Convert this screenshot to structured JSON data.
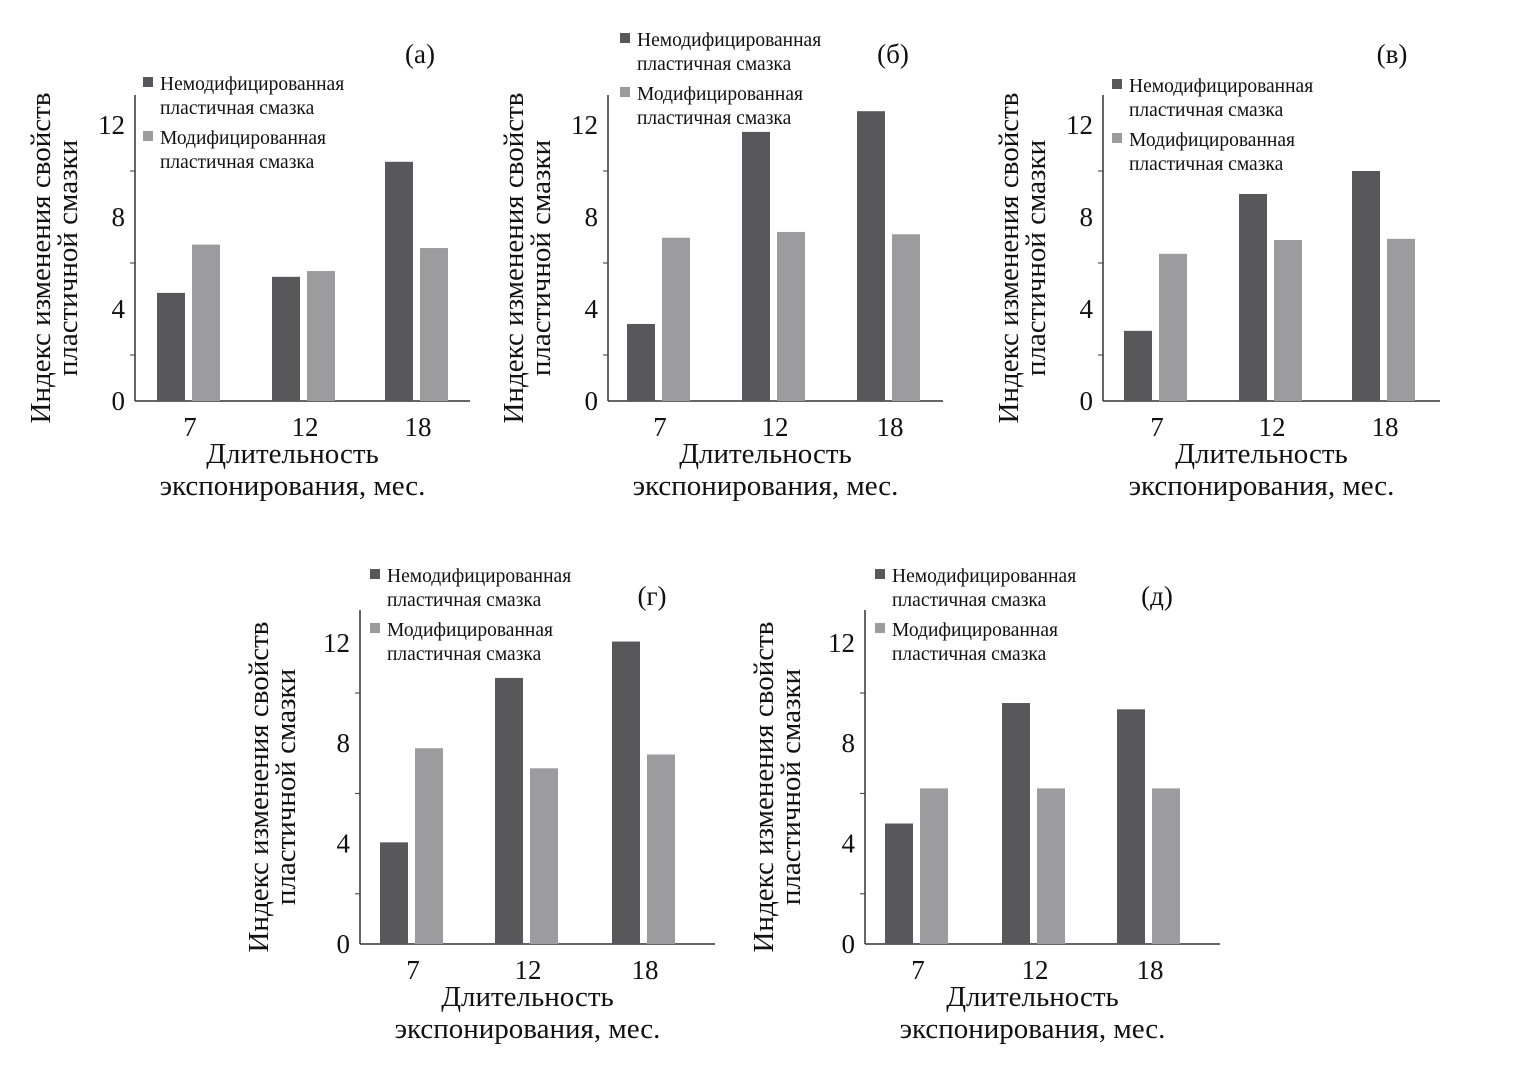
{
  "colors": {
    "unmodified": "#58585a",
    "modified": "#9c9c9e",
    "axis": "#333333"
  },
  "chart_data": [
    {
      "type": "bar",
      "panel": "(а)",
      "categories": [
        "7",
        "12",
        "18"
      ],
      "series": [
        {
          "name": "Немодифицированная пластичная смазка",
          "values": [
            4.7,
            5.4,
            10.4
          ]
        },
        {
          "name": "Модифицированная пластичная смазка",
          "values": [
            6.8,
            5.65,
            6.65
          ]
        }
      ],
      "ylabel": [
        "Индекс изменения свойств",
        "пластичной смазки"
      ],
      "xlabel": [
        "Длительность",
        "экспонирования, мес."
      ],
      "yticks": [
        "0",
        "4",
        "8",
        "12"
      ],
      "ylim": [
        0,
        13.3
      ],
      "legend": "top-left"
    },
    {
      "type": "bar",
      "panel": "(б)",
      "categories": [
        "7",
        "12",
        "18"
      ],
      "series": [
        {
          "name": "Немодифицированная пластичная смазка",
          "values": [
            3.35,
            11.7,
            12.6
          ]
        },
        {
          "name": "Модифицированная пластичная смазка",
          "values": [
            7.1,
            7.35,
            7.25
          ]
        }
      ],
      "ylabel": [
        "Индекс изменения свойств",
        "пластичной смазки"
      ],
      "xlabel": [
        "Длительность",
        "экспонирования, мес."
      ],
      "yticks": [
        "0",
        "4",
        "8",
        "12"
      ],
      "ylim": [
        0,
        13.3
      ],
      "legend": "top-left"
    },
    {
      "type": "bar",
      "panel": "(в)",
      "categories": [
        "7",
        "12",
        "18"
      ],
      "series": [
        {
          "name": "Немодифицированная пластичная смазка",
          "values": [
            3.05,
            9.0,
            10.0
          ]
        },
        {
          "name": "Модифицированная пластичная смазка",
          "values": [
            6.4,
            7.0,
            7.05
          ]
        }
      ],
      "ylabel": [
        "Индекс изменения свойств",
        "пластичной смазки"
      ],
      "xlabel": [
        "Длительность",
        "экспонирования, мес."
      ],
      "yticks": [
        "0",
        "4",
        "8",
        "12"
      ],
      "ylim": [
        0,
        13.3
      ],
      "legend": "top-left"
    },
    {
      "type": "bar",
      "panel": "(г)",
      "categories": [
        "7",
        "12",
        "18"
      ],
      "series": [
        {
          "name": "Немодифицированная пластичная смазка",
          "values": [
            4.05,
            10.6,
            12.05
          ]
        },
        {
          "name": "Модифицированная пластичная смазка",
          "values": [
            7.8,
            7.0,
            7.55
          ]
        }
      ],
      "ylabel": [
        "Индекс изменения свойств",
        "пластичной смазки"
      ],
      "xlabel": [
        "Длительность",
        "экспонирования, мес."
      ],
      "yticks": [
        "0",
        "4",
        "8",
        "12"
      ],
      "ylim": [
        0,
        13.3
      ],
      "legend": "top-left"
    },
    {
      "type": "bar",
      "panel": "(д)",
      "categories": [
        "7",
        "12",
        "18"
      ],
      "series": [
        {
          "name": "Немодифицированная пластичная смазка",
          "values": [
            4.8,
            9.6,
            9.35
          ]
        },
        {
          "name": "Модифицированная пластичная смазка",
          "values": [
            6.2,
            6.2,
            6.2
          ]
        }
      ],
      "ylabel": [
        "Индекс изменения свойств",
        "пластичной смазки"
      ],
      "xlabel": [
        "Длительность",
        "экспонирования, мес."
      ],
      "yticks": [
        "0",
        "4",
        "8",
        "12"
      ],
      "ylim": [
        0,
        13.3
      ],
      "legend": "top-left"
    }
  ],
  "legend_lines": {
    "unmodified": [
      "Немодифицированная",
      "пластичная смазка"
    ],
    "modified": [
      "Модифицированная",
      "пластичная смазка"
    ]
  }
}
